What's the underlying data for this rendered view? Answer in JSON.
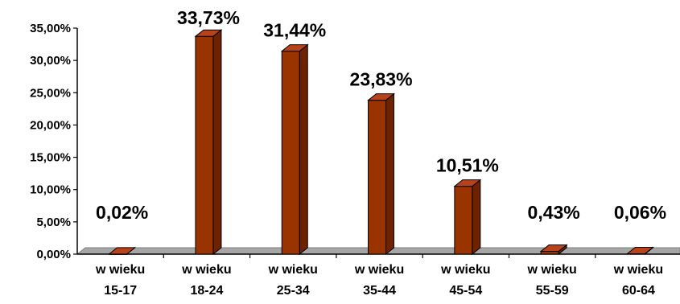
{
  "colors": {
    "bar_front": "#993300",
    "bar_top": "#b8431a",
    "bar_side": "#6e2200",
    "floor": "#a6a6a6",
    "floor_edge": "#7f7f7f",
    "axis": "#000000"
  },
  "chart_data": {
    "type": "bar",
    "title": "",
    "xlabel": "",
    "ylabel": "",
    "ylim": [
      0,
      35
    ],
    "y_ticks": [
      "0,00%",
      "5,00%",
      "10,00%",
      "15,00%",
      "20,00%",
      "25,00%",
      "30,00%",
      "35,00%"
    ],
    "categories": [
      [
        "w wieku",
        "15-17"
      ],
      [
        "w wieku",
        "18-24"
      ],
      [
        "w wieku",
        "25-34"
      ],
      [
        "w wieku",
        "35-44"
      ],
      [
        "w wieku",
        "45-54"
      ],
      [
        "w wieku",
        "55-59"
      ],
      [
        "w wieku",
        "60-64"
      ]
    ],
    "values": [
      0.02,
      33.73,
      31.44,
      23.83,
      10.51,
      0.43,
      0.06
    ],
    "value_labels": [
      "0,02%",
      "33,73%",
      "31,44%",
      "23,83%",
      "10,51%",
      "0,43%",
      "0,06%"
    ],
    "grid": false,
    "legend": "none",
    "style": "3d-column"
  }
}
